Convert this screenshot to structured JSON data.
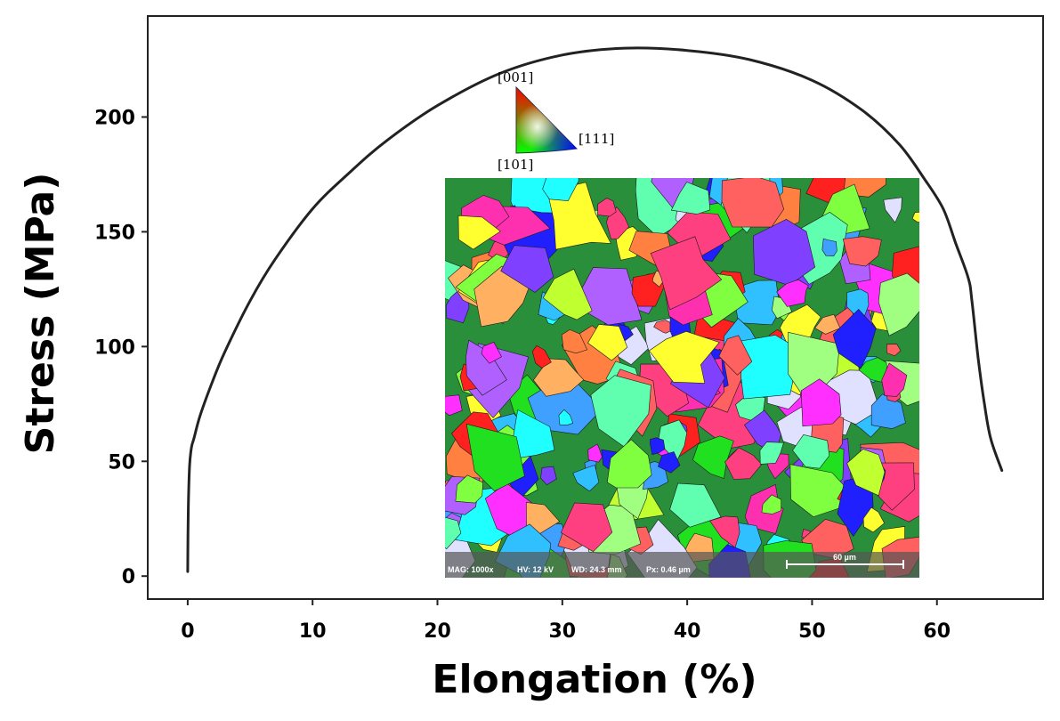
{
  "chart_data": {
    "type": "line",
    "xlabel": "Elongation (%)",
    "ylabel": "Stress (MPa)",
    "xlim": [
      -3.2,
      68.5
    ],
    "ylim": [
      -10,
      244
    ],
    "xticks": [
      0,
      10,
      20,
      30,
      40,
      50,
      60
    ],
    "yticks": [
      0,
      50,
      100,
      150,
      200
    ],
    "grid": false,
    "series": [
      {
        "color": "#222222",
        "x": [
          0,
          0.05,
          0.15,
          0.3,
          0.5,
          1,
          2,
          3,
          5,
          7,
          10,
          13,
          16,
          20,
          25,
          30,
          35,
          40,
          45,
          50,
          54,
          57,
          59,
          60.5,
          61.5,
          62.5,
          62.8,
          63.3,
          63.8,
          64.3,
          65.2
        ],
        "y": [
          2,
          30,
          48,
          56,
          60,
          70,
          85,
          98,
          120,
          138,
          160,
          176,
          190,
          205,
          219,
          227,
          230,
          229,
          225,
          216,
          203,
          188,
          173,
          160,
          145,
          130,
          120,
          95,
          75,
          60,
          46
        ]
      }
    ]
  },
  "inset": {
    "ipf_key": {
      "labels": [
        "[001]",
        "[111]",
        "[101]"
      ],
      "colors": [
        "#ff0000",
        "#0000ff",
        "#00ff00"
      ]
    },
    "ebsd_map": {
      "info": {
        "mag": "MAG: 1000x",
        "hv": "HV: 12 kV",
        "wd": "WD: 24.3 mm",
        "px": "Px: 0.46 µm"
      },
      "scale_bar_label": "60 µm"
    }
  }
}
